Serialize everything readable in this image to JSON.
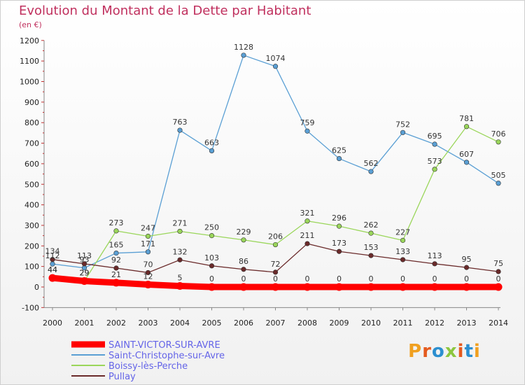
{
  "title": "Evolution du Montant de la Dette par Habitant",
  "subtitle": "(en €)",
  "logo_text": "Proxiti",
  "chart_data": {
    "type": "line",
    "x": [
      "2000",
      "2001",
      "2002",
      "2003",
      "2004",
      "2005",
      "2006",
      "2007",
      "2008",
      "2009",
      "2010",
      "2011",
      "2012",
      "2013",
      "2014"
    ],
    "ylim": [
      -100,
      1200
    ],
    "yticks": [
      -100,
      0,
      100,
      200,
      300,
      400,
      500,
      600,
      700,
      800,
      900,
      1000,
      1100,
      1200
    ],
    "grid": false,
    "legend_position": "bottom-left",
    "series": [
      {
        "name": "Saint-Christophe-sur-Avre",
        "color": "#5a9fd4",
        "values": [
          112,
          93,
          165,
          171,
          763,
          663,
          1128,
          1074,
          759,
          625,
          562,
          752,
          695,
          607,
          505
        ]
      },
      {
        "name": "Boissy-lès-Perche",
        "color": "#9ad65a",
        "values": [
          44,
          29,
          273,
          247,
          271,
          250,
          229,
          206,
          321,
          296,
          262,
          227,
          573,
          781,
          706
        ]
      },
      {
        "name": "Pullay",
        "color": "#6a2a2a",
        "values": [
          134,
          113,
          92,
          70,
          132,
          103,
          86,
          72,
          211,
          173,
          153,
          133,
          113,
          95,
          75
        ]
      },
      {
        "name": "SAINT-VICTOR-SUR-AVRE",
        "color": "#ff0000",
        "values": [
          44,
          29,
          21,
          12,
          5,
          0,
          0,
          0,
          0,
          0,
          0,
          0,
          0,
          0,
          0
        ]
      }
    ]
  }
}
